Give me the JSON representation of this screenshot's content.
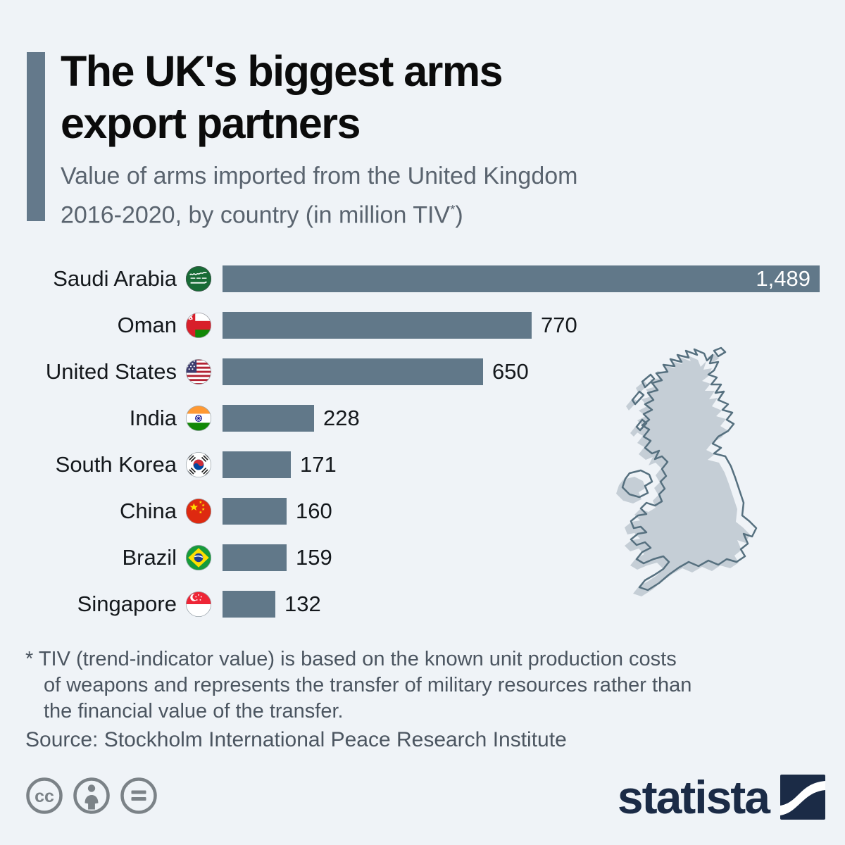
{
  "header": {
    "title_line1": "The UK's biggest arms",
    "title_line2": "export partners",
    "subtitle_line1": "Value of arms imported from the United Kingdom",
    "subtitle_line2_main": "2016-2020, by country (in million TIV",
    "subtitle_sup": "*",
    "subtitle_line2_end": ")"
  },
  "chart_data": {
    "type": "bar",
    "orientation": "horizontal",
    "title": "The UK's biggest arms export partners",
    "subtitle": "Value of arms imported from the United Kingdom 2016-2020, by country (in million TIV*)",
    "unit": "million TIV",
    "xlim": [
      0,
      1489
    ],
    "max_value": 1489,
    "bar_color": "#617889",
    "grid": false,
    "legend": false,
    "categories": [
      "Saudi Arabia",
      "Oman",
      "United States",
      "India",
      "South Korea",
      "China",
      "Brazil",
      "Singapore"
    ],
    "values": [
      1489,
      770,
      650,
      228,
      171,
      160,
      159,
      132
    ],
    "rows": [
      {
        "country": "Saudi Arabia",
        "flag": "saudi-arabia",
        "value": 1489,
        "label": "1,489",
        "value_position": "inside"
      },
      {
        "country": "Oman",
        "flag": "oman",
        "value": 770,
        "label": "770",
        "value_position": "outside"
      },
      {
        "country": "United States",
        "flag": "united-states",
        "value": 650,
        "label": "650",
        "value_position": "outside"
      },
      {
        "country": "India",
        "flag": "india",
        "value": 228,
        "label": "228",
        "value_position": "outside"
      },
      {
        "country": "South Korea",
        "flag": "south-korea",
        "value": 171,
        "label": "171",
        "value_position": "outside"
      },
      {
        "country": "China",
        "flag": "china",
        "value": 160,
        "label": "160",
        "value_position": "outside"
      },
      {
        "country": "Brazil",
        "flag": "brazil",
        "value": 159,
        "label": "159",
        "value_position": "outside"
      },
      {
        "country": "Singapore",
        "flag": "singapore",
        "value": 132,
        "label": "132",
        "value_position": "outside"
      }
    ]
  },
  "footnote": {
    "line1": "* TIV (trend-indicator value) is based on the known unit production costs",
    "line2": "of weapons and represents the transfer of military resources rather than",
    "line3": "the financial value of the transfer."
  },
  "source": {
    "text": "Source: Stockholm International Peace Research Institute"
  },
  "footer": {
    "brand": "statista",
    "cc_text": "cc",
    "license_icons": [
      "cc",
      "attribution",
      "no-derivatives"
    ]
  },
  "colors": {
    "background": "#eff3f7",
    "bar": "#617889",
    "accent_bar": "#64798b",
    "title": "#0b0b0b",
    "subtitle": "#5a646f",
    "value_inside": "#ffffff",
    "value_outside": "#14181c",
    "map_fill": "#c5ced6",
    "map_outline": "#56707f",
    "footnote": "#4b5560",
    "license_icon": "#7b8287",
    "brand_navy": "#1b2b46"
  }
}
